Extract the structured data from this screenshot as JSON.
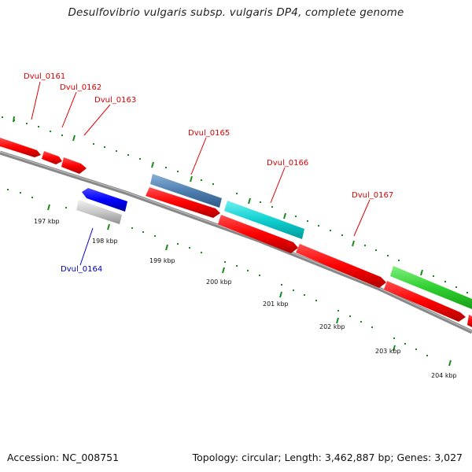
{
  "title": "Desulfovibrio vulgaris subsp. vulgaris DP4, complete genome",
  "footer": {
    "accession": "Accession: NC_008751",
    "summary": "Topology: circular; Length: 3,462,887 bp; Genes: 3,027"
  },
  "colors": {
    "label_red": "#e00000",
    "label_blue": "#0000c0",
    "cds_red": "#ff0000",
    "backbone": "#808080",
    "tick_green": "#1a8a1a"
  },
  "genes": [
    {
      "name": "Dvul_0161",
      "label_color": "red"
    },
    {
      "name": "Dvul_0162",
      "label_color": "red"
    },
    {
      "name": "Dvul_0163",
      "label_color": "red"
    },
    {
      "name": "Dvul_0164",
      "label_color": "blue"
    },
    {
      "name": "Dvul_0165",
      "label_color": "red"
    },
    {
      "name": "Dvul_0166",
      "label_color": "red"
    },
    {
      "name": "Dvul_0167",
      "label_color": "red"
    }
  ],
  "scale_ticks": [
    "197 kbp",
    "198 kbp",
    "199 kbp",
    "200 kbp",
    "201 kbp",
    "202 kbp",
    "203 kbp",
    "204 kbp"
  ]
}
